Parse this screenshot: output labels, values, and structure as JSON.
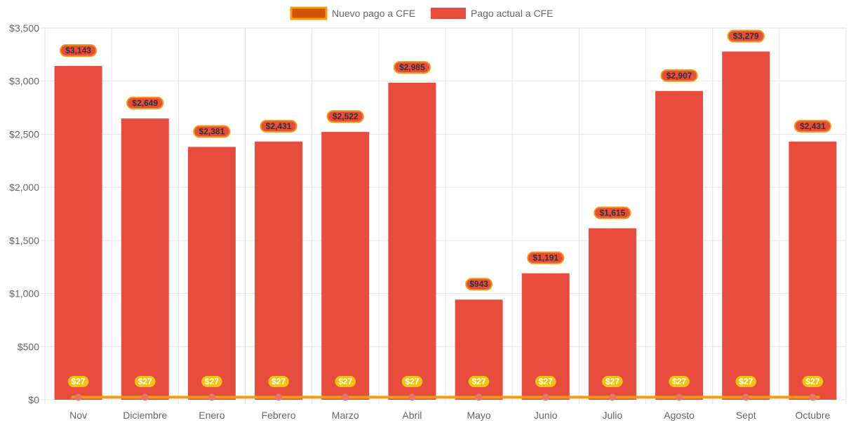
{
  "chart_data": {
    "type": "bar",
    "categories": [
      "Nov",
      "Diciembre",
      "Enero",
      "Febrero",
      "Marzo",
      "Abril",
      "Mayo",
      "Junio",
      "Julio",
      "Agosto",
      "Sept",
      "Octubre"
    ],
    "series": [
      {
        "name": "Nuevo pago a CFE",
        "type": "line",
        "values": [
          27,
          27,
          27,
          27,
          27,
          27,
          27,
          27,
          27,
          27,
          27,
          27
        ],
        "labels": [
          "$27",
          "$27",
          "$27",
          "$27",
          "$27",
          "$27",
          "$27",
          "$27",
          "$27",
          "$27",
          "$27",
          "$27"
        ],
        "color": "#f39c12",
        "point_color": "#e8746a",
        "label_bg": "#f1c40f",
        "legend_fill": "#d35400"
      },
      {
        "name": "Pago actual a CFE",
        "type": "bar",
        "values": [
          3143,
          2649,
          2381,
          2431,
          2522,
          2985,
          943,
          1191,
          1615,
          2907,
          3279,
          2431
        ],
        "labels": [
          "$3,143",
          "$2,649",
          "$2,381",
          "$2,431",
          "$2,522",
          "$2,985",
          "$943",
          "$1,191",
          "$1,615",
          "$2,907",
          "$3,279",
          "$2,431"
        ],
        "color": "#e74c3c",
        "label_border": "#f39c12"
      }
    ],
    "y_ticks": [
      "$0",
      "$500",
      "$1,000",
      "$1,500",
      "$2,000",
      "$2,500",
      "$3,000",
      "$3,500"
    ],
    "y_tick_values": [
      0,
      500,
      1000,
      1500,
      2000,
      2500,
      3000,
      3500
    ],
    "ylim": [
      0,
      3500
    ],
    "title": "",
    "xlabel": "",
    "ylabel": "",
    "grid": true,
    "legend_position": "top-center",
    "grid_color": "#e5e5e5"
  }
}
